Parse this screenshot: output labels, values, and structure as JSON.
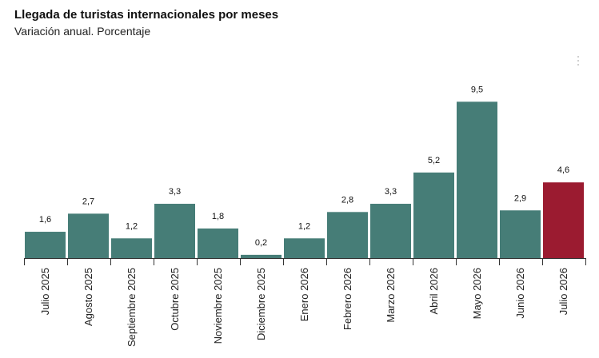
{
  "chart_data": {
    "type": "bar",
    "title": "Llegada de turistas internacionales por meses",
    "subtitle": "Variación anual. Porcentaje",
    "categories": [
      "Julio 2025",
      "Agosto 2025",
      "Septiembre 2025",
      "Octubre 2025",
      "Noviembre 2025",
      "Diciembre 2025",
      "Enero 2026",
      "Febrero 2026",
      "Marzo 2026",
      "Abril 2026",
      "Mayo 2026",
      "Junio 2026",
      "Julio 2026"
    ],
    "values": [
      1.6,
      2.7,
      1.2,
      3.3,
      1.8,
      0.2,
      1.2,
      2.8,
      3.3,
      5.2,
      9.5,
      2.9,
      4.6
    ],
    "data_labels": [
      "1,6",
      "2,7",
      "1,2",
      "3,3",
      "1,8",
      "0,2",
      "1,2",
      "2,8",
      "3,3",
      "5,2",
      "9,5",
      "2,9",
      "4,6"
    ],
    "highlight_index": 12,
    "colors": {
      "bar": "#467d77",
      "highlight": "#9b1b30",
      "axis": "#333333"
    },
    "ylim": [
      0,
      10
    ],
    "grid": false,
    "legend": "none"
  }
}
